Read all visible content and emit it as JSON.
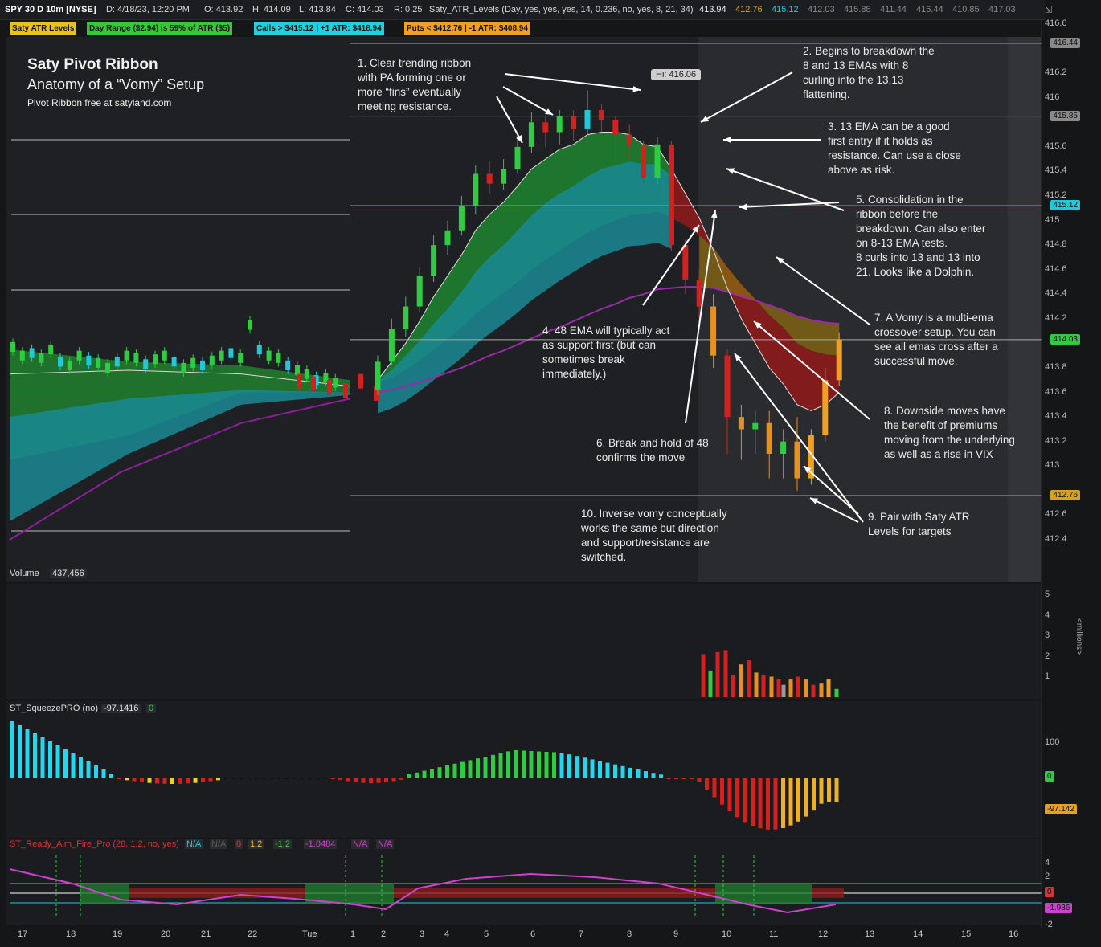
{
  "header": {
    "symbol": "SPY 30 D 10m [NYSE]",
    "date": "D: 4/18/23, 12:20 PM",
    "open": "O: 413.92",
    "high": "H: 414.09",
    "low": "L: 413.84",
    "close": "C: 414.03",
    "range": "R: 0.25",
    "study": "Saty_ATR_Levels (Day, yes, yes, yes, 14, 0.236, no, yes, 8, 21, 34)",
    "vals": [
      "413.94",
      "412.76",
      "415.12",
      "412.03",
      "415.85",
      "411.44",
      "416.44",
      "410.85",
      "417.03"
    ]
  },
  "levels_bar": {
    "name": "Saty ATR Levels",
    "day_range": "Day Range ($2.94) is 59% of ATR ($5)",
    "calls": "Calls > $415.12 | +1 ATR: $418.94",
    "puts": "Puts < $412.76 | -1 ATR: $408.94"
  },
  "title": {
    "main": "Saty Pivot Ribbon",
    "sub": "Anatomy of a “Vomy” Setup",
    "note": "Pivot Ribbon free at satyland.com"
  },
  "hi_label": "Hi: 416.06",
  "annotations": [
    [
      "1. Clear trending ribbon",
      "with PA forming one or",
      "more “fins” eventually",
      "meeting resistance."
    ],
    [
      "2. Begins to breakdown the",
      "8 and 13 EMAs with 8",
      "curling into the 13,13",
      "flattening."
    ],
    [
      "3. 13 EMA can be a good",
      "first entry if it holds as",
      "resistance. Can use a close",
      "above as risk."
    ],
    [
      "4. 48 EMA will typically act",
      "as support first (but can",
      "sometimes break",
      "immediately.)"
    ],
    [
      "5. Consolidation in the",
      "ribbon before the",
      "breakdown. Can also enter",
      "on 8-13 EMA tests.",
      "8 curls into 13 and 13 into",
      "21. Looks like a Dolphin."
    ],
    [
      "6. Break and hold of 48",
      "confirms the move"
    ],
    [
      "7. A Vomy is a multi-ema",
      "crossover setup. You can",
      "see all emas cross after a",
      "successful move."
    ],
    [
      "8. Downside moves have",
      "the benefit of premiums",
      "moving from the underlying",
      "as well as a rise in VIX"
    ],
    [
      "9. Pair with Saty ATR",
      "Levels for targets"
    ],
    [
      "10. Inverse vomy conceptually",
      "works the same but direction",
      "and support/resistance are",
      "switched."
    ]
  ],
  "price_axis": {
    "ticks": [
      "416.6",
      "416.2",
      "416",
      "415.6",
      "415.4",
      "415.2",
      "415",
      "414.8",
      "414.6",
      "414.4",
      "414.2",
      "413.8",
      "413.6",
      "413.4",
      "413.2",
      "413",
      "412.6",
      "412.4"
    ],
    "tags": [
      {
        "text": "416.44",
        "color": "#8a8a8a"
      },
      {
        "text": "415.85",
        "color": "#8a8a8a"
      },
      {
        "text": "415.12",
        "color": "#21c8d8"
      },
      {
        "text": "414.03",
        "color": "#2ecc40"
      },
      {
        "text": "412.76",
        "color": "#d9a21b"
      }
    ]
  },
  "volume_pane": {
    "label": "Volume",
    "value": "437,456",
    "axis": [
      "5",
      "4",
      "3",
      "2",
      "1"
    ],
    "unit": "<millions>"
  },
  "squeeze_pane": {
    "label": "ST_SqueezePRO (no)",
    "value": "-97.1416",
    "extra": "0",
    "axis": [
      "100"
    ],
    "tags": [
      {
        "text": "0",
        "color": "#2ecc40"
      },
      {
        "text": "-97.142",
        "color": "#e8a020"
      }
    ]
  },
  "raf_pane": {
    "label": "ST_Ready_Aim_Fire_Pro (28, 1.2, no, yes)",
    "values": [
      "N/A",
      "N/A",
      "0",
      "1.2",
      "-1.2",
      "-1.0484",
      "N/A",
      "N/A"
    ],
    "axis": [
      "4",
      "2",
      "-2"
    ],
    "tags": [
      {
        "text": "0",
        "color": "#e03030"
      },
      {
        "text": "-1.936",
        "color": "#d040d0"
      }
    ]
  },
  "x_axis": [
    "17",
    "18",
    "19",
    "20",
    "21",
    "22",
    "Tue",
    "1",
    "2",
    "3",
    "4",
    "5",
    "6",
    "7",
    "8",
    "9",
    "10",
    "11",
    "12",
    "13",
    "14",
    "15",
    "16"
  ],
  "chart_data": {
    "type": "candlestick",
    "title": "Saty Pivot Ribbon",
    "ylabel": "",
    "ylim": [
      412.3,
      416.7
    ],
    "x_ticks": [
      "Tue",
      "1",
      "2",
      "3",
      "4",
      "5",
      "6",
      "7",
      "8",
      "9",
      "10",
      "11",
      "12"
    ],
    "candles": [
      {
        "o": 413.62,
        "c": 413.85,
        "h": 413.9,
        "l": 413.58
      },
      {
        "o": 413.85,
        "c": 414.12,
        "h": 414.2,
        "l": 413.82
      },
      {
        "o": 414.12,
        "c": 414.3,
        "h": 414.38,
        "l": 414.05
      },
      {
        "o": 414.3,
        "c": 414.55,
        "h": 414.62,
        "l": 414.25
      },
      {
        "o": 414.55,
        "c": 414.8,
        "h": 414.88,
        "l": 414.5
      },
      {
        "o": 414.8,
        "c": 414.92,
        "h": 415.0,
        "l": 414.72
      },
      {
        "o": 414.92,
        "c": 415.12,
        "h": 415.2,
        "l": 414.88
      },
      {
        "o": 415.12,
        "c": 415.38,
        "h": 415.45,
        "l": 415.05
      },
      {
        "o": 415.38,
        "c": 415.3,
        "h": 415.48,
        "l": 415.22
      },
      {
        "o": 415.3,
        "c": 415.42,
        "h": 415.5,
        "l": 415.25
      },
      {
        "o": 415.42,
        "c": 415.6,
        "h": 415.7,
        "l": 415.38
      },
      {
        "o": 415.6,
        "c": 415.8,
        "h": 415.88,
        "l": 415.55
      },
      {
        "o": 415.8,
        "c": 415.72,
        "h": 415.85,
        "l": 415.6
      },
      {
        "o": 415.72,
        "c": 415.85,
        "h": 415.9,
        "l": 415.62
      },
      {
        "o": 415.85,
        "c": 415.75,
        "h": 415.9,
        "l": 415.65
      },
      {
        "o": 415.75,
        "c": 415.9,
        "h": 416.06,
        "l": 415.7
      },
      {
        "o": 415.9,
        "c": 415.82,
        "h": 415.95,
        "l": 415.72
      },
      {
        "o": 415.82,
        "c": 415.7,
        "h": 415.85,
        "l": 415.45
      },
      {
        "o": 415.7,
        "c": 415.62,
        "h": 415.78,
        "l": 415.5
      },
      {
        "o": 415.62,
        "c": 415.35,
        "h": 415.65,
        "l": 415.3
      },
      {
        "o": 415.35,
        "c": 415.62,
        "h": 415.68,
        "l": 415.3
      },
      {
        "o": 415.62,
        "c": 414.8,
        "h": 415.65,
        "l": 414.75
      },
      {
        "o": 414.8,
        "c": 414.52,
        "h": 414.85,
        "l": 414.4
      },
      {
        "o": 414.52,
        "c": 414.3,
        "h": 414.6,
        "l": 414.2
      },
      {
        "o": 414.3,
        "c": 413.9,
        "h": 414.4,
        "l": 413.8
      },
      {
        "o": 413.9,
        "c": 413.4,
        "h": 413.95,
        "l": 413.1
      },
      {
        "o": 413.4,
        "c": 413.3,
        "h": 413.5,
        "l": 413.05
      },
      {
        "o": 413.3,
        "c": 413.35,
        "h": 413.45,
        "l": 413.1
      },
      {
        "o": 413.35,
        "c": 413.1,
        "h": 413.45,
        "l": 412.9
      },
      {
        "o": 413.1,
        "c": 413.2,
        "h": 413.3,
        "l": 412.9
      },
      {
        "o": 413.2,
        "c": 412.9,
        "h": 413.4,
        "l": 412.8
      },
      {
        "o": 412.9,
        "c": 413.25,
        "h": 413.3,
        "l": 412.85
      },
      {
        "o": 413.25,
        "c": 413.7,
        "h": 413.8,
        "l": 413.2
      },
      {
        "o": 413.7,
        "c": 414.03,
        "h": 414.09,
        "l": 413.65
      }
    ],
    "ema8": [
      413.7,
      413.85,
      414.0,
      414.18,
      414.38,
      414.55,
      414.72,
      414.92,
      415.05,
      415.15,
      415.28,
      415.42,
      415.5,
      415.58,
      415.62,
      415.7,
      415.72,
      415.72,
      415.7,
      415.62,
      415.6,
      415.42,
      415.22,
      415.02,
      414.76,
      414.45,
      414.2,
      414.0,
      413.8,
      413.67,
      413.5,
      413.45,
      413.5,
      413.6
    ],
    "ema13": [
      413.7,
      413.78,
      413.9,
      414.02,
      414.16,
      414.28,
      414.42,
      414.58,
      414.7,
      414.8,
      414.92,
      415.04,
      415.14,
      415.22,
      415.28,
      415.36,
      415.42,
      415.45,
      415.48,
      415.46,
      415.46,
      415.36,
      415.23,
      415.08,
      414.9,
      414.66,
      414.45,
      414.27,
      414.08,
      413.95,
      413.8,
      413.72,
      413.72,
      413.75
    ],
    "ema21": [
      413.68,
      413.72,
      413.78,
      413.86,
      413.95,
      414.04,
      414.13,
      414.24,
      414.33,
      414.41,
      414.5,
      414.6,
      414.68,
      414.76,
      414.83,
      414.9,
      414.96,
      415.0,
      415.04,
      415.05,
      415.07,
      415.02,
      414.96,
      414.88,
      414.78,
      414.62,
      414.48,
      414.36,
      414.23,
      414.13,
      414.0,
      413.94,
      413.91,
      413.9
    ],
    "ema48": [
      413.6,
      413.62,
      413.65,
      413.68,
      413.72,
      413.76,
      413.8,
      413.85,
      413.9,
      413.94,
      413.99,
      414.04,
      414.09,
      414.13,
      414.18,
      414.23,
      414.28,
      414.32,
      414.37,
      414.4,
      414.44,
      414.45,
      414.46,
      414.46,
      414.45,
      414.42,
      414.38,
      414.35,
      414.31,
      414.27,
      414.22,
      414.19,
      414.17,
      414.16
    ],
    "atr_levels": [
      {
        "name": "416.44",
        "value": 416.44
      },
      {
        "name": "415.85",
        "value": 415.85
      },
      {
        "name": "415.12",
        "value": 415.12
      },
      {
        "name": "414.03",
        "value": 414.03
      },
      {
        "name": "412.76",
        "value": 412.76
      }
    ]
  }
}
